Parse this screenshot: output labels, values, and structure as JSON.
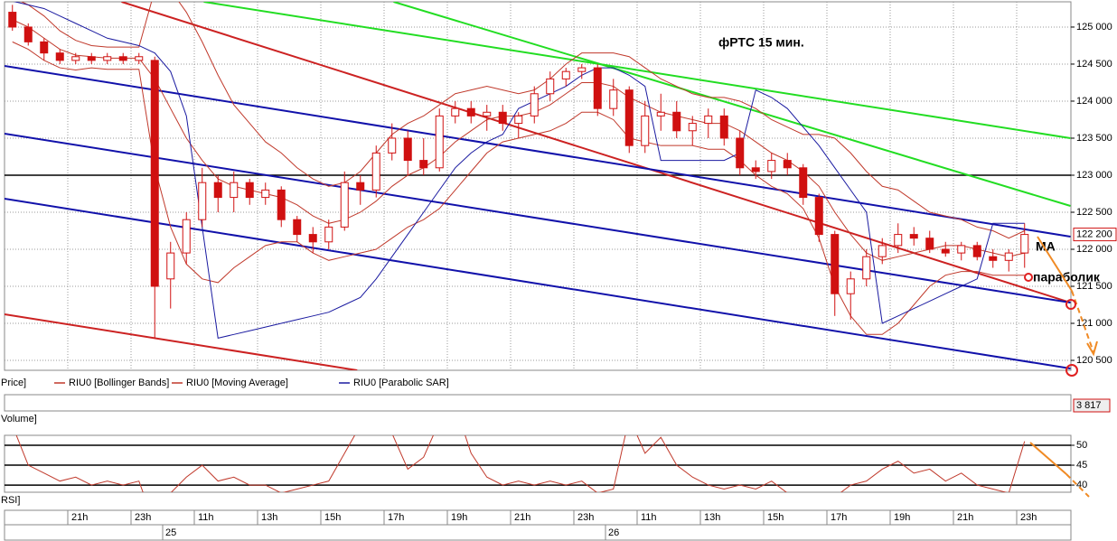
{
  "chart_data": [
    {
      "type": "candlestick",
      "legend_label": "Price]",
      "annotations": [
        "фРТС   15 мин.",
        "МА",
        "параболик"
      ],
      "categories": [
        null,
        null,
        null,
        null,
        "21h",
        null,
        null,
        null,
        "23h",
        null,
        null,
        null,
        "11h",
        null,
        null,
        null,
        "13h",
        null,
        null,
        null,
        "15h",
        null,
        null,
        null,
        "17h",
        null,
        null,
        null,
        "19h",
        null,
        null,
        null,
        "21h",
        null,
        null,
        null,
        "23h",
        null,
        null,
        null,
        "11h",
        null,
        null,
        null,
        "13h",
        null,
        null,
        null,
        "15h",
        null,
        null,
        null,
        "17h",
        null,
        null,
        null,
        "19h",
        null,
        null,
        null,
        "21h",
        null,
        null,
        null,
        "23h"
      ],
      "day_labels": [
        null,
        null,
        null,
        null,
        null,
        null,
        null,
        null,
        null,
        null,
        "25",
        null,
        null,
        null,
        null,
        null,
        null,
        null,
        null,
        null,
        null,
        null,
        null,
        null,
        null,
        null,
        null,
        null,
        null,
        null,
        null,
        null,
        null,
        null,
        null,
        null,
        null,
        null,
        "26",
        null,
        null,
        null,
        null,
        null,
        null,
        null,
        null,
        null,
        null,
        null,
        null,
        null,
        null,
        null,
        null,
        null,
        null,
        null,
        null,
        null,
        null,
        null,
        null,
        null,
        null
      ],
      "open": [
        125200,
        125000,
        124800,
        124650,
        124550,
        124600,
        124550,
        124600,
        124550,
        124550,
        121600,
        121950,
        122400,
        122900,
        122700,
        122900,
        122700,
        122800,
        122400,
        122200,
        122100,
        122300,
        122900,
        122800,
        123300,
        123500,
        123200,
        123100,
        123800,
        123900,
        123800,
        123850,
        123700,
        123800,
        124100,
        124300,
        124400,
        124450,
        123900,
        124150,
        123400,
        123800,
        123850,
        123600,
        123700,
        123800,
        123500,
        123100,
        123050,
        123200,
        123100,
        122700,
        122200,
        121400,
        121600,
        121900,
        122050,
        122200,
        122150,
        122000,
        121950,
        122050,
        121900,
        121850,
        121950
      ],
      "high": [
        125300,
        125050,
        124850,
        124700,
        124650,
        124650,
        124650,
        124650,
        124650,
        124600,
        122100,
        122500,
        123100,
        123000,
        123050,
        122950,
        122900,
        122850,
        122450,
        122300,
        122400,
        123050,
        123000,
        123400,
        123700,
        123600,
        123500,
        123900,
        124000,
        124000,
        123950,
        123950,
        123850,
        124200,
        124400,
        124450,
        124500,
        124500,
        124300,
        124200,
        124000,
        124100,
        124000,
        123800,
        123900,
        123900,
        123600,
        123200,
        123300,
        123300,
        123150,
        122750,
        122250,
        121700,
        122000,
        122150,
        122350,
        122300,
        122250,
        122100,
        122100,
        122100,
        122000,
        122000,
        122350
      ],
      "low": [
        124950,
        124750,
        124550,
        124500,
        124500,
        124500,
        124500,
        124500,
        124500,
        120800,
        121200,
        121800,
        122300,
        122500,
        122500,
        122600,
        122600,
        122300,
        122100,
        121950,
        122000,
        122250,
        122600,
        122700,
        123200,
        123000,
        123000,
        123050,
        123700,
        123700,
        123600,
        123600,
        123500,
        123700,
        124000,
        124200,
        124300,
        123800,
        123800,
        123300,
        123300,
        123600,
        123500,
        123400,
        123500,
        123400,
        123000,
        122950,
        122950,
        123000,
        122600,
        122100,
        121100,
        121050,
        121500,
        121800,
        121950,
        122050,
        121950,
        121900,
        121850,
        121850,
        121750,
        121700,
        121750
      ],
      "close": [
        125000,
        124800,
        124650,
        124550,
        124600,
        124550,
        124600,
        124550,
        124600,
        121500,
        121950,
        122400,
        122900,
        122700,
        122900,
        122700,
        122800,
        122400,
        122200,
        122100,
        122300,
        122900,
        122800,
        123300,
        123500,
        123200,
        123100,
        123800,
        123900,
        123800,
        123850,
        123700,
        123800,
        124100,
        124300,
        124400,
        124450,
        123900,
        124150,
        123400,
        123800,
        123850,
        123600,
        123700,
        123800,
        123500,
        123100,
        123050,
        123200,
        123100,
        122700,
        122200,
        121400,
        121600,
        121900,
        122050,
        122200,
        122150,
        122000,
        121950,
        122050,
        121900,
        121850,
        121950,
        122200
      ],
      "up_color": "#ffffff",
      "down_color": "#d01010",
      "outline_color": "#d01010",
      "series": [
        {
          "name": "RIU0 [Bollinger Bands]",
          "color": "#c0392b",
          "upper": [
            125400,
            125300,
            125150,
            124950,
            124820,
            124750,
            124730,
            124730,
            124730,
            125500,
            125500,
            125200,
            124800,
            124350,
            123950,
            123700,
            123450,
            123300,
            123100,
            122950,
            122850,
            122900,
            123050,
            123300,
            123550,
            123700,
            123800,
            123950,
            124100,
            124150,
            124200,
            124150,
            124100,
            124150,
            124300,
            124500,
            124650,
            124650,
            124650,
            124600,
            124450,
            124300,
            124200,
            124100,
            124050,
            124050,
            124000,
            123900,
            123750,
            123650,
            123550,
            123550,
            123500,
            123300,
            123050,
            122850,
            122800,
            122650,
            122500,
            122450,
            122400,
            122300,
            122250,
            122150,
            122250
          ],
          "lower": [
            124800,
            124700,
            124550,
            124450,
            124420,
            124450,
            124430,
            124430,
            124430,
            123100,
            122300,
            121800,
            121600,
            121550,
            121750,
            121900,
            122050,
            122100,
            122100,
            121950,
            121850,
            121900,
            121950,
            122000,
            122150,
            122300,
            122400,
            122550,
            122800,
            123050,
            123300,
            123450,
            123500,
            123550,
            123600,
            123700,
            123850,
            123850,
            123750,
            123500,
            123450,
            123400,
            123400,
            123400,
            123350,
            123350,
            123200,
            123000,
            122850,
            122750,
            122550,
            122150,
            121500,
            121100,
            120850,
            120850,
            121000,
            121250,
            121500,
            121650,
            121700,
            121700,
            121650,
            121650,
            121650
          ]
        },
        {
          "name": "RIU0 [Moving Average]",
          "color": "#c0392b",
          "values": [
            125100,
            125000,
            124850,
            124700,
            124620,
            124600,
            124580,
            124580,
            124580,
            124300,
            123900,
            123500,
            123200,
            122950,
            122850,
            122800,
            122750,
            122700,
            122600,
            122450,
            122350,
            122400,
            122500,
            122650,
            122850,
            123000,
            123100,
            123250,
            123450,
            123600,
            123750,
            123800,
            123800,
            123850,
            123950,
            124100,
            124250,
            124250,
            124200,
            124050,
            123950,
            123850,
            123800,
            123750,
            123700,
            123700,
            123600,
            123450,
            123300,
            123200,
            123050,
            122850,
            122500,
            122200,
            121950,
            121850,
            121900,
            121950,
            122000,
            122050,
            122050,
            122000,
            121950,
            121900,
            121950
          ]
        },
        {
          "name": "RIU0 [Parabolic SAR]",
          "color": "#1a1aa0",
          "values": [
            125350,
            125300,
            125250,
            125150,
            125050,
            124950,
            124850,
            124800,
            124750,
            124650,
            124400,
            123800,
            122300,
            120800,
            120850,
            120900,
            120950,
            121000,
            121050,
            121100,
            121150,
            121250,
            121350,
            121600,
            121900,
            122200,
            122500,
            122800,
            123100,
            123300,
            123450,
            123550,
            123900,
            124000,
            124100,
            124200,
            124350,
            124450,
            124450,
            124350,
            124200,
            123200,
            123200,
            123200,
            123200,
            123200,
            123300,
            124150,
            124050,
            123900,
            123650,
            123400,
            123100,
            122800,
            122500,
            121000,
            121100,
            121200,
            121300,
            121400,
            121500,
            121600,
            122350,
            122350,
            122350
          ]
        }
      ],
      "trendlines": [
        {
          "color": "#22dd22",
          "x": [
            12.1,
            66.9
          ],
          "y": [
            125341,
            123500
          ]
        },
        {
          "color": "#22dd22",
          "x": [
            24.1,
            66.9
          ],
          "y": [
            125341,
            122585
          ]
        },
        {
          "color": "#cc2222",
          "x": [
            6.9,
            66.9
          ],
          "y": [
            125341,
            121280
          ]
        },
        {
          "color": "#cc2222",
          "x": [
            -0.5,
            21.8
          ],
          "y": [
            121122,
            120366
          ]
        },
        {
          "color": "#1111aa",
          "x": [
            -0.5,
            66.9
          ],
          "y": [
            124476,
            122171
          ]
        },
        {
          "color": "#1111aa",
          "x": [
            -0.5,
            66.9
          ],
          "y": [
            123561,
            121280
          ]
        },
        {
          "color": "#1111aa",
          "x": [
            -0.5,
            66.9
          ],
          "y": [
            122683,
            120390
          ]
        }
      ],
      "hlines": [
        123000
      ],
      "last_price": {
        "value": 122200,
        "label": "122 200"
      },
      "ylim": [
        120366,
        125341
      ],
      "yticks": [
        {
          "value": 120500,
          "label": "120 500"
        },
        {
          "value": 121000,
          "label": "121 000"
        },
        {
          "value": 121500,
          "label": "121 500"
        },
        {
          "value": 122000,
          "label": "122 000"
        },
        {
          "value": 122500,
          "label": "122 500"
        },
        {
          "value": 123000,
          "label": "123 000"
        },
        {
          "value": 123500,
          "label": "123 500"
        },
        {
          "value": 124000,
          "label": "124 000"
        },
        {
          "value": 124500,
          "label": "124 500"
        },
        {
          "value": 125000,
          "label": "125 000"
        }
      ],
      "grid": true
    },
    {
      "type": "volume",
      "legend_label": "Volume]",
      "last_value": {
        "value": 3817,
        "label": "3 817"
      }
    },
    {
      "type": "line",
      "legend_label": "RSI]",
      "color": "#c0392b",
      "values": [
        55,
        45,
        43,
        41,
        42,
        40,
        41,
        40,
        41,
        30,
        38,
        42,
        45,
        41,
        42,
        40,
        40,
        38,
        39,
        40,
        41,
        48,
        55,
        58,
        53,
        44,
        47,
        56,
        60,
        48,
        42,
        40,
        41,
        40,
        41,
        40,
        41,
        38,
        39,
        57,
        48,
        52,
        45,
        42,
        40,
        39,
        40,
        39,
        41,
        38,
        35,
        38,
        37,
        40,
        41,
        44,
        46,
        43,
        44,
        41,
        43,
        40,
        39,
        38,
        51
      ],
      "ylim": [
        38.2,
        52.5
      ],
      "yticks": [
        40,
        45,
        50
      ]
    }
  ]
}
